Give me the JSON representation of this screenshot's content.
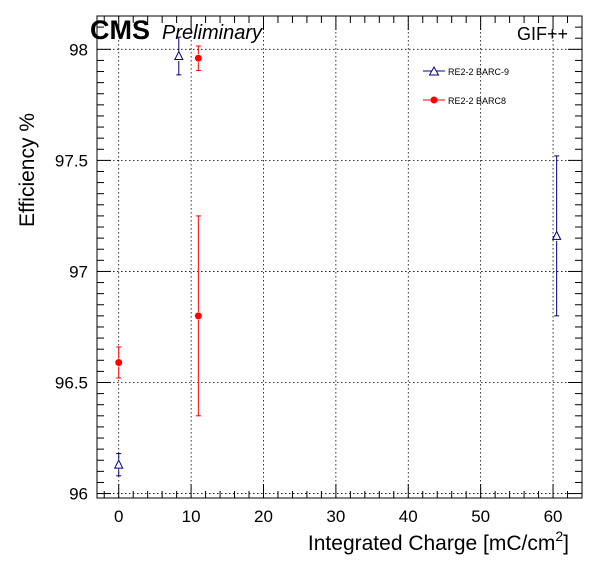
{
  "header": {
    "experiment": "CMS",
    "status": "Preliminary",
    "facility": "GIF++"
  },
  "chart_data": {
    "type": "scatter",
    "title": "",
    "xlabel": "Integrated Charge [mC/cm",
    "xlabel_sup": "2",
    "xlabel_end": "]",
    "ylabel": "Efficiency %",
    "xlim": [
      -3,
      64
    ],
    "ylim": [
      95.98,
      98.15
    ],
    "xticks": [
      0,
      10,
      20,
      30,
      40,
      50,
      60
    ],
    "xtick_labels": [
      "0",
      "10",
      "20",
      "30",
      "40",
      "50",
      "60"
    ],
    "yticks": [
      96,
      96.5,
      97,
      97.5,
      98
    ],
    "ytick_labels": [
      "96",
      "96.5",
      "97",
      "97.5",
      "98"
    ],
    "grid": true,
    "legend_position": "top-right",
    "series": [
      {
        "name": "RE2-2 BARC-9",
        "marker": "open-triangle",
        "color": "#000080",
        "points": [
          {
            "x": 0,
            "y": 96.13,
            "err": 0.05
          },
          {
            "x": 8.3,
            "y": 97.97,
            "err": 0.085
          },
          {
            "x": 60.5,
            "y": 97.16,
            "err": 0.36
          }
        ]
      },
      {
        "name": "RE2-2 BARC8",
        "marker": "filled-circle",
        "color": "#ff0000",
        "points": [
          {
            "x": 0,
            "y": 96.59,
            "err": 0.07
          },
          {
            "x": 11,
            "y": 97.96,
            "err": 0.055
          },
          {
            "x": 11,
            "y": 96.8,
            "err": 0.45
          }
        ]
      }
    ]
  }
}
